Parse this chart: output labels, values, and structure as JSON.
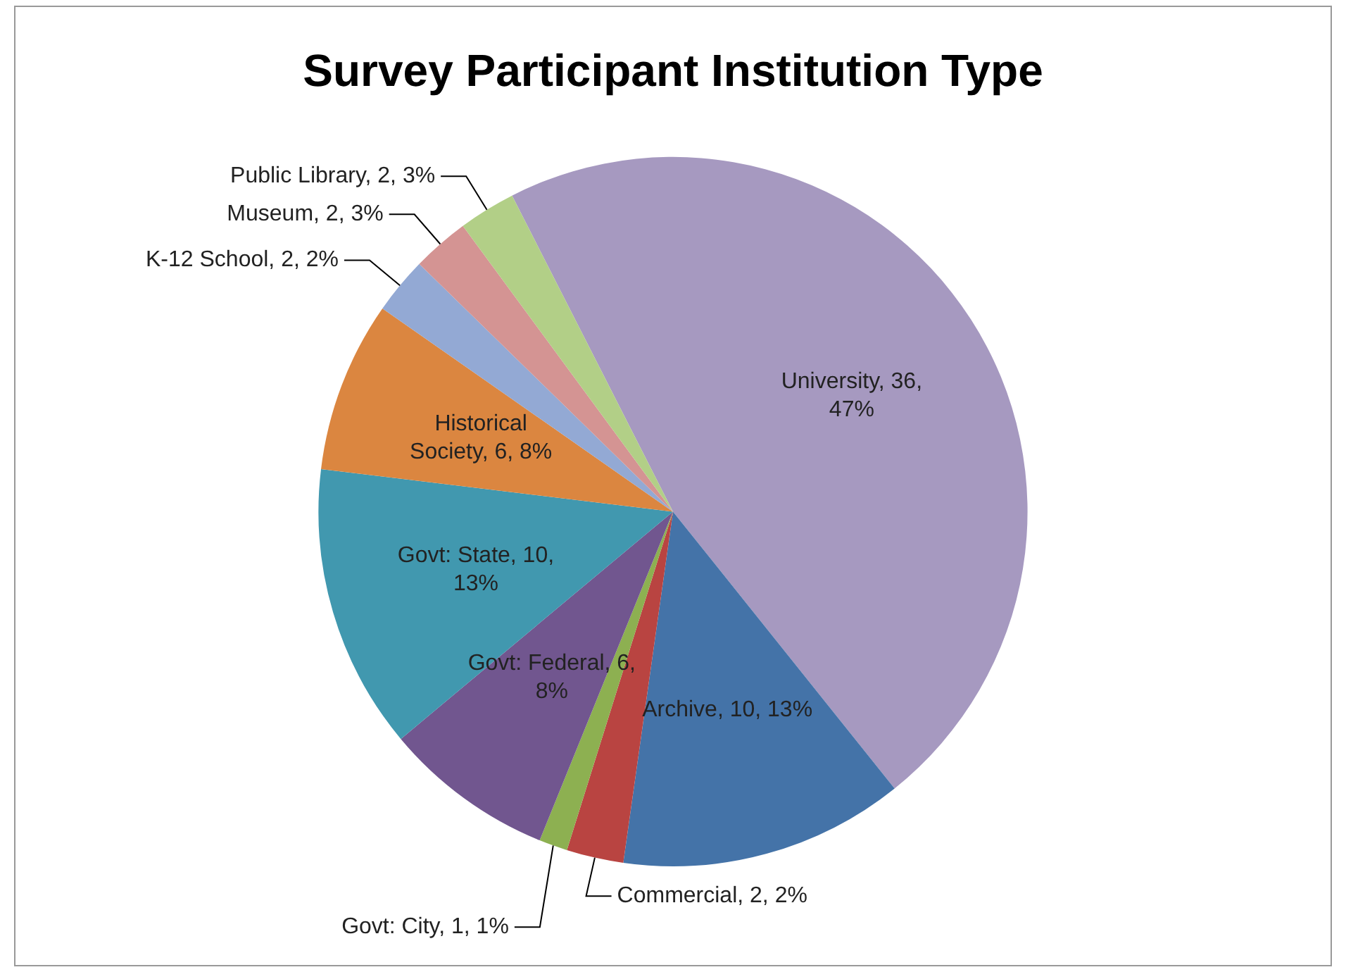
{
  "chart_data": {
    "type": "pie",
    "title": "Survey Participant Institution Type",
    "categories": [
      "University",
      "Archive",
      "Commercial",
      "Govt: City",
      "Govt: Federal",
      "Govt: State",
      "Historical Society",
      "K-12 School",
      "Museum",
      "Public Library"
    ],
    "values": [
      36,
      10,
      2,
      1,
      6,
      10,
      6,
      2,
      2,
      2
    ],
    "value_labels": [
      "36, 47%",
      "10, 13%",
      "2, 2%",
      "1, 1%",
      "6, 8%",
      "10, 13%",
      "6, 8%",
      "2, 2%",
      "2, 3%",
      "2, 3%"
    ],
    "colors": [
      "#a699c0",
      "#4473a8",
      "#b94441",
      "#8db051",
      "#71568f",
      "#4198af",
      "#db8640",
      "#93a9d4",
      "#d49493",
      "#b2cf87"
    ],
    "legend": false
  }
}
